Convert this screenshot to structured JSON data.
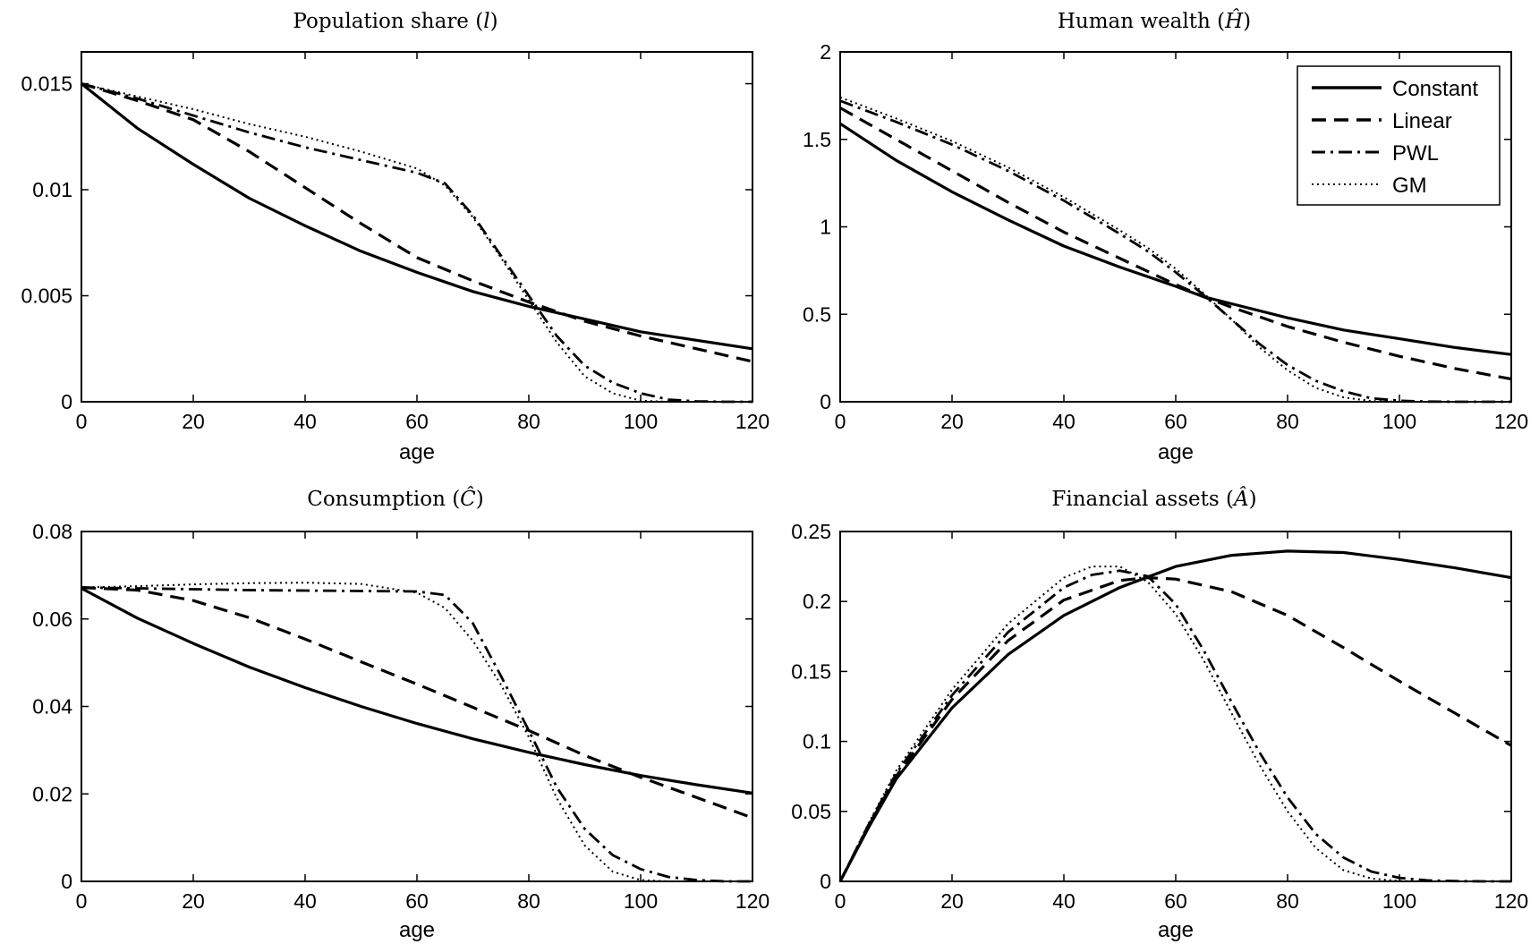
{
  "chart_data": [
    {
      "type": "line",
      "title": "Population share (l)",
      "title_parts": [
        "Population share (",
        "l",
        ")"
      ],
      "xlabel": "age",
      "ylabel": "",
      "xlim": [
        0,
        120
      ],
      "ylim": [
        0,
        0.0165
      ],
      "xticks": [
        0,
        20,
        40,
        60,
        80,
        100,
        120
      ],
      "xtick_labels": [
        "0",
        "20",
        "40",
        "60",
        "80",
        "100",
        "120"
      ],
      "yticks": [
        0,
        0.005,
        0.01,
        0.015
      ],
      "ytick_labels": [
        "0",
        "0.005",
        "0.01",
        "0.015"
      ],
      "grid": false,
      "series": [
        {
          "name": "Constant",
          "x": [
            0,
            10,
            20,
            30,
            40,
            50,
            60,
            70,
            80,
            90,
            100,
            110,
            120
          ],
          "values": [
            0.015,
            0.0129,
            0.0112,
            0.0096,
            0.0083,
            0.0071,
            0.0061,
            0.0052,
            0.0045,
            0.0039,
            0.0033,
            0.0029,
            0.0025
          ]
        },
        {
          "name": "Linear",
          "x": [
            0,
            10,
            20,
            30,
            40,
            50,
            60,
            70,
            80,
            90,
            100,
            110,
            120
          ],
          "values": [
            0.015,
            0.0142,
            0.0133,
            0.0118,
            0.0101,
            0.0084,
            0.0068,
            0.0057,
            0.0047,
            0.0038,
            0.0031,
            0.0025,
            0.0019
          ]
        },
        {
          "name": "PWL",
          "x": [
            0,
            10,
            20,
            30,
            40,
            50,
            60,
            65,
            70,
            75,
            80,
            85,
            90,
            95,
            100,
            105,
            110,
            115,
            120
          ],
          "values": [
            0.015,
            0.0143,
            0.0135,
            0.0127,
            0.012,
            0.0114,
            0.0108,
            0.0103,
            0.0088,
            0.0069,
            0.005,
            0.0031,
            0.0017,
            0.0009,
            0.0004,
            0.0001,
            2e-05,
            0.0,
            0.0
          ]
        },
        {
          "name": "GM",
          "x": [
            0,
            10,
            20,
            30,
            40,
            50,
            60,
            65,
            70,
            75,
            80,
            85,
            90,
            95,
            100,
            105,
            110,
            115,
            120
          ],
          "values": [
            0.015,
            0.0144,
            0.0138,
            0.0131,
            0.0125,
            0.0118,
            0.011,
            0.0102,
            0.0087,
            0.0068,
            0.0048,
            0.0028,
            0.0012,
            0.0004,
            5e-05,
            0.0,
            0.0,
            0.0,
            0.0
          ]
        }
      ]
    },
    {
      "type": "line",
      "title": "Human wealth (Ĥ)",
      "title_parts": [
        "Human wealth (",
        "Ĥ",
        ")"
      ],
      "xlabel": "age",
      "ylabel": "",
      "xlim": [
        0,
        120
      ],
      "ylim": [
        0,
        2
      ],
      "xticks": [
        0,
        20,
        40,
        60,
        80,
        100,
        120
      ],
      "xtick_labels": [
        "0",
        "20",
        "40",
        "60",
        "80",
        "100",
        "120"
      ],
      "yticks": [
        0,
        0.5,
        1,
        1.5,
        2
      ],
      "ytick_labels": [
        "0",
        "0.5",
        "1",
        "1.5",
        "2"
      ],
      "grid": false,
      "legend": {
        "location": "top-right",
        "entries": [
          "Constant",
          "Linear",
          "PWL",
          "GM"
        ]
      },
      "series": [
        {
          "name": "Constant",
          "x": [
            0,
            10,
            20,
            30,
            40,
            50,
            60,
            65,
            70,
            80,
            90,
            100,
            110,
            120
          ],
          "values": [
            1.59,
            1.38,
            1.2,
            1.04,
            0.89,
            0.77,
            0.66,
            0.6,
            0.56,
            0.48,
            0.41,
            0.36,
            0.31,
            0.27
          ]
        },
        {
          "name": "Linear",
          "x": [
            0,
            10,
            20,
            30,
            40,
            50,
            60,
            65,
            70,
            80,
            90,
            100,
            110,
            120
          ],
          "values": [
            1.68,
            1.5,
            1.32,
            1.14,
            0.97,
            0.82,
            0.67,
            0.6,
            0.54,
            0.43,
            0.34,
            0.26,
            0.19,
            0.13
          ]
        },
        {
          "name": "PWL",
          "x": [
            0,
            10,
            20,
            30,
            40,
            50,
            55,
            60,
            65,
            70,
            75,
            80,
            85,
            90,
            95,
            100,
            105,
            110,
            115,
            120
          ],
          "values": [
            1.72,
            1.6,
            1.47,
            1.32,
            1.15,
            0.96,
            0.86,
            0.74,
            0.61,
            0.47,
            0.33,
            0.21,
            0.12,
            0.06,
            0.02,
            0.006,
            0.001,
            0.0,
            0.0,
            0.0
          ]
        },
        {
          "name": "GM",
          "x": [
            0,
            10,
            20,
            30,
            40,
            50,
            55,
            60,
            65,
            70,
            75,
            80,
            85,
            90,
            95,
            100,
            105,
            110,
            115,
            120
          ],
          "values": [
            1.74,
            1.62,
            1.49,
            1.34,
            1.17,
            0.98,
            0.88,
            0.76,
            0.62,
            0.47,
            0.31,
            0.18,
            0.08,
            0.025,
            0.004,
            0.0,
            0.0,
            0.0,
            0.0,
            0.0
          ]
        }
      ]
    },
    {
      "type": "line",
      "title": "Consumption (Ĉ)",
      "title_parts": [
        "Consumption (",
        "Ĉ",
        ")"
      ],
      "xlabel": "age",
      "ylabel": "",
      "xlim": [
        0,
        120
      ],
      "ylim": [
        0,
        0.08
      ],
      "xticks": [
        0,
        20,
        40,
        60,
        80,
        100,
        120
      ],
      "xtick_labels": [
        "0",
        "20",
        "40",
        "60",
        "80",
        "100",
        "120"
      ],
      "yticks": [
        0,
        0.02,
        0.04,
        0.06,
        0.08
      ],
      "ytick_labels": [
        "0",
        "0.02",
        "0.04",
        "0.06",
        "0.08"
      ],
      "grid": false,
      "series": [
        {
          "name": "Constant",
          "x": [
            0,
            10,
            20,
            30,
            40,
            50,
            60,
            70,
            80,
            90,
            100,
            110,
            120
          ],
          "values": [
            0.067,
            0.0602,
            0.0544,
            0.049,
            0.0443,
            0.04,
            0.0361,
            0.0326,
            0.0295,
            0.0267,
            0.0242,
            0.0221,
            0.0202
          ]
        },
        {
          "name": "Linear",
          "x": [
            0,
            10,
            20,
            30,
            40,
            50,
            60,
            70,
            80,
            90,
            100,
            110,
            120
          ],
          "values": [
            0.0672,
            0.0666,
            0.0642,
            0.0603,
            0.0554,
            0.0502,
            0.0451,
            0.0398,
            0.0345,
            0.0288,
            0.0238,
            0.0192,
            0.0145
          ]
        },
        {
          "name": "PWL",
          "x": [
            0,
            10,
            20,
            30,
            40,
            50,
            60,
            65,
            70,
            75,
            80,
            85,
            90,
            95,
            100,
            105,
            110,
            115,
            120
          ],
          "values": [
            0.0672,
            0.067,
            0.0668,
            0.0666,
            0.0665,
            0.0664,
            0.0663,
            0.0655,
            0.059,
            0.047,
            0.0345,
            0.0215,
            0.012,
            0.006,
            0.0028,
            0.001,
            0.0003,
            0.0,
            0.0
          ]
        },
        {
          "name": "GM",
          "x": [
            0,
            10,
            20,
            30,
            40,
            50,
            60,
            65,
            70,
            75,
            80,
            85,
            90,
            95,
            100,
            105,
            110,
            115,
            120
          ],
          "values": [
            0.0672,
            0.0675,
            0.0679,
            0.0682,
            0.0683,
            0.068,
            0.066,
            0.0625,
            0.055,
            0.045,
            0.033,
            0.019,
            0.0082,
            0.0022,
            0.0003,
            0.0,
            0.0,
            0.0,
            0.0
          ]
        }
      ]
    },
    {
      "type": "line",
      "title": "Financial assets (Â)",
      "title_parts": [
        "Financial assets (",
        "Â",
        ")"
      ],
      "xlabel": "age",
      "ylabel": "",
      "xlim": [
        0,
        120
      ],
      "ylim": [
        0,
        0.25
      ],
      "xticks": [
        0,
        20,
        40,
        60,
        80,
        100,
        120
      ],
      "xtick_labels": [
        "0",
        "20",
        "40",
        "60",
        "80",
        "100",
        "120"
      ],
      "yticks": [
        0,
        0.05,
        0.1,
        0.15,
        0.2,
        0.25
      ],
      "ytick_labels": [
        "0",
        "0.05",
        "0.1",
        "0.15",
        "0.2",
        "0.25"
      ],
      "grid": false,
      "series": [
        {
          "name": "Constant",
          "x": [
            0,
            5,
            10,
            20,
            30,
            40,
            50,
            60,
            70,
            80,
            90,
            100,
            110,
            120
          ],
          "values": [
            0.0,
            0.038,
            0.073,
            0.124,
            0.162,
            0.19,
            0.21,
            0.225,
            0.233,
            0.236,
            0.235,
            0.23,
            0.224,
            0.217
          ]
        },
        {
          "name": "Linear",
          "x": [
            0,
            5,
            10,
            20,
            30,
            40,
            50,
            55,
            60,
            70,
            80,
            90,
            100,
            110,
            120
          ],
          "values": [
            0.0,
            0.039,
            0.075,
            0.13,
            0.172,
            0.201,
            0.215,
            0.217,
            0.216,
            0.207,
            0.19,
            0.167,
            0.143,
            0.12,
            0.097
          ]
        },
        {
          "name": "PWL",
          "x": [
            0,
            5,
            10,
            20,
            30,
            40,
            45,
            50,
            55,
            60,
            65,
            70,
            75,
            80,
            85,
            90,
            95,
            100,
            105,
            110,
            115,
            120
          ],
          "values": [
            0.0,
            0.04,
            0.077,
            0.133,
            0.178,
            0.21,
            0.219,
            0.222,
            0.218,
            0.198,
            0.165,
            0.128,
            0.092,
            0.06,
            0.034,
            0.017,
            0.007,
            0.0025,
            0.0007,
            0.0002,
            0.0,
            0.0
          ]
        },
        {
          "name": "GM",
          "x": [
            0,
            5,
            10,
            20,
            30,
            40,
            45,
            50,
            55,
            60,
            65,
            70,
            75,
            80,
            85,
            90,
            95,
            100,
            105,
            110,
            115,
            120
          ],
          "values": [
            0.0,
            0.041,
            0.079,
            0.137,
            0.184,
            0.217,
            0.225,
            0.225,
            0.214,
            0.191,
            0.158,
            0.12,
            0.083,
            0.05,
            0.024,
            0.008,
            0.002,
            0.0003,
            0.0,
            0.0,
            0.0,
            0.0
          ]
        }
      ]
    }
  ],
  "legend": {
    "entries": [
      {
        "label": "Constant",
        "style": "solid"
      },
      {
        "label": "Linear",
        "style": "dashed"
      },
      {
        "label": "PWL",
        "style": "dashdot"
      },
      {
        "label": "GM",
        "style": "dotted"
      }
    ]
  },
  "colors": {
    "line": "#000000",
    "background": "#ffffff"
  }
}
